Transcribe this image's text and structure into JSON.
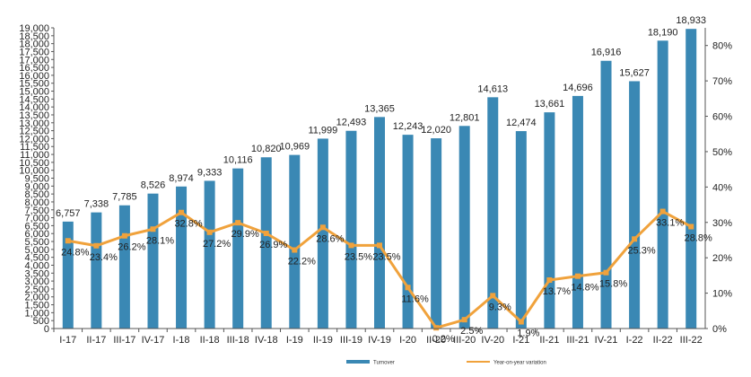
{
  "chart_data": {
    "type": "bar",
    "categories": [
      "I-17",
      "II-17",
      "III-17",
      "IV-17",
      "I-18",
      "II-18",
      "III-18",
      "IV-18",
      "I-19",
      "II-19",
      "III-19",
      "IV-19",
      "I-20",
      "II-20",
      "III-20",
      "IV-20",
      "I-21",
      "II-21",
      "III-21",
      "IV-21",
      "I-22",
      "II-22",
      "III-22"
    ],
    "series": [
      {
        "name": "Turnover",
        "type": "bar",
        "axis": "left",
        "color": "#3a88b4",
        "values": [
          6757,
          7338,
          7785,
          8526,
          8974,
          9333,
          10116,
          10820,
          10969,
          11999,
          12493,
          13365,
          12243,
          12020,
          12801,
          14613,
          12474,
          13661,
          14696,
          16916,
          15627,
          18190,
          18933
        ],
        "labels": [
          "6,757",
          "7,338",
          "7,785",
          "8,526",
          "8,974",
          "9,333",
          "10,116",
          "10,820",
          "10,969",
          "11,999",
          "12,493",
          "13,365",
          "12,243",
          "12,020",
          "12,801",
          "14,613",
          "12,474",
          "13,661",
          "14,696",
          "16,916",
          "15,627",
          "18,190",
          "18,933"
        ]
      },
      {
        "name": "Year-on-year variation",
        "type": "line",
        "axis": "right",
        "color": "#f0a23c",
        "values": [
          24.8,
          23.4,
          26.2,
          28.1,
          32.8,
          27.2,
          29.9,
          26.9,
          22.2,
          28.6,
          23.5,
          23.5,
          11.6,
          0.2,
          2.5,
          9.3,
          1.9,
          13.7,
          14.8,
          15.8,
          25.3,
          33.1,
          28.8
        ],
        "labels": [
          "24.8%",
          "23.4%",
          "26.2%",
          "28.1%",
          "32.8%",
          "27.2%",
          "29.9%",
          "26.9%",
          "22.2%",
          "28.6%",
          "23.5%",
          "23.5%",
          "11.6%",
          "0.2%",
          "2.5%",
          "9.3%",
          "1.9%",
          "13.7%",
          "14.8%",
          "15.8%",
          "25.3%",
          "33.1%",
          "28.8%"
        ]
      }
    ],
    "y_left": {
      "range": [
        0,
        19000
      ],
      "step": 500,
      "ticks": [
        "0",
        "500",
        "1,000",
        "1,500",
        "2,000",
        "2,500",
        "3,000",
        "3,500",
        "4,000",
        "4,500",
        "5,000",
        "5,500",
        "6,000",
        "6,500",
        "7,000",
        "7,500",
        "8,000",
        "8,500",
        "9,000",
        "9,500",
        "10,000",
        "10,500",
        "11,000",
        "11,500",
        "12,000",
        "12,500",
        "13,000",
        "13,500",
        "14,000",
        "14,500",
        "15,000",
        "15,500",
        "16,000",
        "16,500",
        "17,000",
        "17,500",
        "18,000",
        "18,500",
        "19,000"
      ]
    },
    "y_right": {
      "range": [
        0,
        85
      ],
      "ticks": [
        "0%",
        "10%",
        "20%",
        "30%",
        "40%",
        "50%",
        "60%",
        "70%",
        "80%"
      ]
    },
    "grid": false,
    "legend_position": "bottom"
  }
}
